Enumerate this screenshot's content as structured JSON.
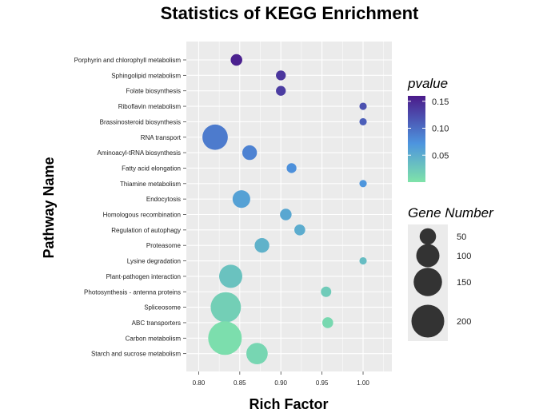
{
  "chart_data": {
    "type": "scatter",
    "title": "Statistics of KEGG Enrichment",
    "xlabel": "Rich Factor",
    "ylabel": "Pathway Name",
    "xlim": [
      0.785,
      1.035
    ],
    "xticks": [
      "0.80",
      "0.85",
      "0.90",
      "0.95",
      "1.00"
    ],
    "grid": true,
    "legend_position": "right",
    "categories": [
      "Porphyrin and chlorophyll metabolism",
      "Sphingolipid metabolism",
      "Folate biosynthesis",
      "Riboflavin metabolism",
      "Brassinosteroid biosynthesis",
      "RNA transport",
      "Aminoacyl-tRNA biosynthesis",
      "Fatty acid elongation",
      "Thiamine metabolism",
      "Endocytosis",
      "Homologous recombination",
      "Regulation of autophagy",
      "Proteasome",
      "Lysine degradation",
      "Plant-pathogen interaction",
      "Photosynthesis - antenna proteins",
      "Spliceosome",
      "ABC transporters",
      "Carbon metabolism",
      "Starch and sucrose metabolism"
    ],
    "points": [
      {
        "pathway": "Porphyrin and chlorophyll metabolism",
        "rich_factor": 0.846,
        "pvalue": 0.155,
        "gene_number": 25
      },
      {
        "pathway": "Sphingolipid metabolism",
        "rich_factor": 0.9,
        "pvalue": 0.14,
        "gene_number": 18
      },
      {
        "pathway": "Folate biosynthesis",
        "rich_factor": 0.9,
        "pvalue": 0.135,
        "gene_number": 18
      },
      {
        "pathway": "Riboflavin metabolism",
        "rich_factor": 1.0,
        "pvalue": 0.12,
        "gene_number": 10
      },
      {
        "pathway": "Brassinosteroid biosynthesis",
        "rich_factor": 1.0,
        "pvalue": 0.11,
        "gene_number": 10
      },
      {
        "pathway": "RNA transport",
        "rich_factor": 0.82,
        "pvalue": 0.09,
        "gene_number": 120
      },
      {
        "pathway": "Aminoacyl-tRNA biosynthesis",
        "rich_factor": 0.862,
        "pvalue": 0.085,
        "gene_number": 40
      },
      {
        "pathway": "Fatty acid elongation",
        "rich_factor": 0.913,
        "pvalue": 0.075,
        "gene_number": 18
      },
      {
        "pathway": "Thiamine metabolism",
        "rich_factor": 1.0,
        "pvalue": 0.07,
        "gene_number": 10
      },
      {
        "pathway": "Endocytosis",
        "rich_factor": 0.852,
        "pvalue": 0.06,
        "gene_number": 58
      },
      {
        "pathway": "Homologous recombination",
        "rich_factor": 0.906,
        "pvalue": 0.055,
        "gene_number": 25
      },
      {
        "pathway": "Regulation of autophagy",
        "rich_factor": 0.923,
        "pvalue": 0.05,
        "gene_number": 22
      },
      {
        "pathway": "Proteasome",
        "rich_factor": 0.877,
        "pvalue": 0.045,
        "gene_number": 40
      },
      {
        "pathway": "Lysine degradation",
        "rich_factor": 1.0,
        "pvalue": 0.035,
        "gene_number": 10
      },
      {
        "pathway": "Plant-pathogen interaction",
        "rich_factor": 0.839,
        "pvalue": 0.03,
        "gene_number": 100
      },
      {
        "pathway": "Photosynthesis - antenna proteins",
        "rich_factor": 0.955,
        "pvalue": 0.022,
        "gene_number": 20
      },
      {
        "pathway": "Spliceosome",
        "rich_factor": 0.833,
        "pvalue": 0.018,
        "gene_number": 170
      },
      {
        "pathway": "ABC transporters",
        "rich_factor": 0.957,
        "pvalue": 0.01,
        "gene_number": 22
      },
      {
        "pathway": "Carbon metabolism",
        "rich_factor": 0.832,
        "pvalue": 0.005,
        "gene_number": 210
      },
      {
        "pathway": "Starch and sucrose metabolism",
        "rich_factor": 0.871,
        "pvalue": 0.012,
        "gene_number": 85
      }
    ],
    "color_legend": {
      "title": "pvalue",
      "range": [
        0.0,
        0.16
      ],
      "ticks": [
        "0.15",
        "0.10",
        "0.05"
      ],
      "colors": [
        "#7fe3a9",
        "#4d94de",
        "#4b1a8a"
      ]
    },
    "size_legend": {
      "title": "Gene Number",
      "values": [
        50,
        100,
        150,
        200
      ],
      "labels": [
        "50",
        "100",
        "150",
        "200"
      ]
    }
  }
}
